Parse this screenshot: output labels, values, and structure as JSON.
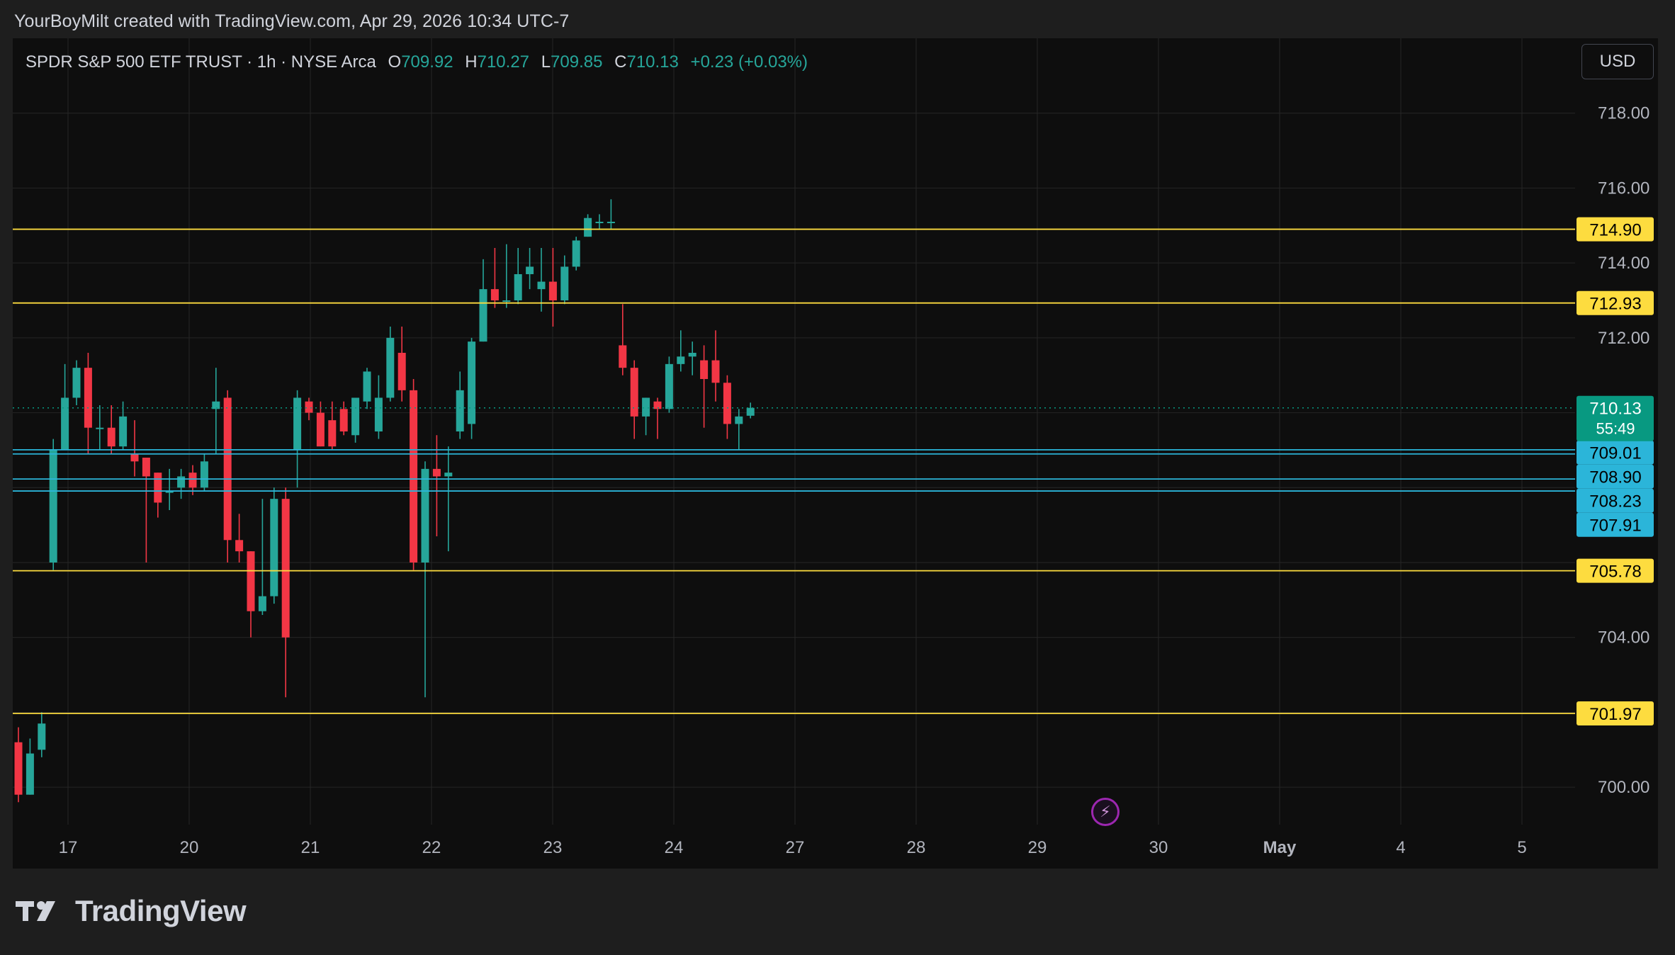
{
  "credit": "YourBoyMilt created with TradingView.com, Apr 29, 2026 10:34 UTC-7",
  "legend": {
    "symbol": "SPDR S&P 500 ETF TRUST · 1h · NYSE Arca",
    "o_label": "O",
    "o_value": "709.92",
    "h_label": "H",
    "h_value": "710.27",
    "l_label": "L",
    "l_value": "709.85",
    "c_label": "C",
    "c_value": "710.13",
    "change": "+0.23 (+0.03%)"
  },
  "currency": "USD",
  "brand": "TradingView",
  "icons": {
    "logo": "tradingview-logo-icon",
    "flash": "lightning-icon"
  },
  "colors": {
    "up": "#26a69a",
    "down": "#f23645",
    "support_line": "#fddc3f",
    "level_line": "#2bb5d9",
    "last_price": "#089981",
    "axis_text": "#b2b5be"
  },
  "chart_data": {
    "type": "candlestick",
    "title": "SPDR S&P 500 ETF TRUST · 1h · NYSE Arca",
    "ylim": [
      699,
      720
    ],
    "y_ticks": [
      "718.00",
      "716.00",
      "714.00",
      "712.00",
      "704.00",
      "700.00"
    ],
    "x_ticks": [
      "17",
      "20",
      "21",
      "22",
      "23",
      "24",
      "27",
      "28",
      "29",
      "30",
      "May",
      "4",
      "5"
    ],
    "horizontal_lines": [
      {
        "label": "714.90",
        "value": 714.9,
        "style": "yellow"
      },
      {
        "label": "712.93",
        "value": 712.93,
        "style": "yellow"
      },
      {
        "label": "705.78",
        "value": 705.78,
        "style": "yellow"
      },
      {
        "label": "701.97",
        "value": 701.97,
        "style": "yellow"
      },
      {
        "label": "709.01",
        "value": 709.01,
        "style": "blue"
      },
      {
        "label": "708.90",
        "value": 708.9,
        "style": "blue"
      },
      {
        "label": "708.23",
        "value": 708.23,
        "style": "blue"
      },
      {
        "label": "707.91",
        "value": 707.91,
        "style": "blue"
      }
    ],
    "last_price": {
      "label": "710.13",
      "value": 710.13,
      "countdown": "55:49"
    },
    "candles": [
      {
        "o": 701.2,
        "h": 701.6,
        "l": 699.6,
        "c": 699.8
      },
      {
        "o": 699.8,
        "h": 701.3,
        "l": 699.8,
        "c": 700.9
      },
      {
        "o": 701.0,
        "h": 702.0,
        "l": 700.8,
        "c": 701.7
      },
      {
        "o": 706.0,
        "h": 709.3,
        "l": 705.8,
        "c": 709.0
      },
      {
        "o": 709.0,
        "h": 711.3,
        "l": 709.0,
        "c": 710.4
      },
      {
        "o": 710.4,
        "h": 711.4,
        "l": 710.2,
        "c": 711.2
      },
      {
        "o": 711.2,
        "h": 711.6,
        "l": 708.9,
        "c": 709.6
      },
      {
        "o": 709.6,
        "h": 710.2,
        "l": 709.0,
        "c": 709.6
      },
      {
        "o": 709.6,
        "h": 710.2,
        "l": 708.9,
        "c": 709.1
      },
      {
        "o": 709.1,
        "h": 710.3,
        "l": 709.0,
        "c": 709.9
      },
      {
        "o": 708.9,
        "h": 709.8,
        "l": 708.3,
        "c": 708.7
      },
      {
        "o": 708.8,
        "h": 708.8,
        "l": 706.0,
        "c": 708.3
      },
      {
        "o": 708.4,
        "h": 708.4,
        "l": 707.2,
        "c": 707.6
      },
      {
        "o": 707.9,
        "h": 708.5,
        "l": 707.4,
        "c": 707.9
      },
      {
        "o": 708.0,
        "h": 708.5,
        "l": 707.7,
        "c": 708.3
      },
      {
        "o": 708.4,
        "h": 708.6,
        "l": 707.8,
        "c": 708.0
      },
      {
        "o": 708.0,
        "h": 708.9,
        "l": 707.9,
        "c": 708.7
      },
      {
        "o": 710.1,
        "h": 711.2,
        "l": 708.9,
        "c": 710.3
      },
      {
        "o": 710.4,
        "h": 710.6,
        "l": 706.0,
        "c": 706.6
      },
      {
        "o": 706.6,
        "h": 707.3,
        "l": 706.0,
        "c": 706.3
      },
      {
        "o": 706.3,
        "h": 706.3,
        "l": 704.0,
        "c": 704.7
      },
      {
        "o": 704.7,
        "h": 707.7,
        "l": 704.6,
        "c": 705.1
      },
      {
        "o": 705.1,
        "h": 708.0,
        "l": 704.9,
        "c": 707.7
      },
      {
        "o": 707.7,
        "h": 708.0,
        "l": 702.4,
        "c": 704.0
      },
      {
        "o": 709.0,
        "h": 710.6,
        "l": 708.0,
        "c": 710.4
      },
      {
        "o": 710.3,
        "h": 710.4,
        "l": 709.8,
        "c": 710.0
      },
      {
        "o": 710.0,
        "h": 710.3,
        "l": 709.1,
        "c": 709.1
      },
      {
        "o": 709.8,
        "h": 710.3,
        "l": 709.0,
        "c": 709.1
      },
      {
        "o": 710.1,
        "h": 710.3,
        "l": 709.4,
        "c": 709.5
      },
      {
        "o": 709.4,
        "h": 710.3,
        "l": 709.2,
        "c": 710.4
      },
      {
        "o": 710.3,
        "h": 711.2,
        "l": 710.1,
        "c": 711.1
      },
      {
        "o": 709.5,
        "h": 711.0,
        "l": 709.3,
        "c": 710.4
      },
      {
        "o": 710.4,
        "h": 712.3,
        "l": 710.3,
        "c": 712.0
      },
      {
        "o": 711.6,
        "h": 712.3,
        "l": 710.3,
        "c": 710.6
      },
      {
        "o": 710.6,
        "h": 710.9,
        "l": 705.8,
        "c": 706.0
      },
      {
        "o": 706.0,
        "h": 708.7,
        "l": 702.4,
        "c": 708.5
      },
      {
        "o": 708.5,
        "h": 709.4,
        "l": 706.7,
        "c": 708.3
      },
      {
        "o": 708.3,
        "h": 709.1,
        "l": 706.3,
        "c": 708.4
      },
      {
        "o": 709.5,
        "h": 711.1,
        "l": 709.3,
        "c": 710.6
      },
      {
        "o": 709.7,
        "h": 712.0,
        "l": 709.3,
        "c": 711.9
      },
      {
        "o": 711.9,
        "h": 714.1,
        "l": 711.9,
        "c": 713.3
      },
      {
        "o": 713.3,
        "h": 714.4,
        "l": 712.8,
        "c": 713.0
      },
      {
        "o": 713.0,
        "h": 714.5,
        "l": 712.8,
        "c": 713.0
      },
      {
        "o": 713.0,
        "h": 714.4,
        "l": 712.9,
        "c": 713.7
      },
      {
        "o": 713.7,
        "h": 714.4,
        "l": 713.3,
        "c": 713.9
      },
      {
        "o": 713.3,
        "h": 714.4,
        "l": 712.7,
        "c": 713.5
      },
      {
        "o": 713.5,
        "h": 714.4,
        "l": 712.3,
        "c": 713.0
      },
      {
        "o": 713.0,
        "h": 714.2,
        "l": 712.9,
        "c": 713.9
      },
      {
        "o": 713.9,
        "h": 714.7,
        "l": 713.8,
        "c": 714.6
      },
      {
        "o": 714.7,
        "h": 715.3,
        "l": 714.7,
        "c": 715.2
      },
      {
        "o": 715.1,
        "h": 715.3,
        "l": 714.9,
        "c": 715.1
      },
      {
        "o": 715.1,
        "h": 715.7,
        "l": 714.9,
        "c": 715.1
      },
      {
        "o": 711.8,
        "h": 712.9,
        "l": 711.0,
        "c": 711.2
      },
      {
        "o": 711.2,
        "h": 711.4,
        "l": 709.3,
        "c": 709.9
      },
      {
        "o": 709.9,
        "h": 710.4,
        "l": 709.4,
        "c": 710.4
      },
      {
        "o": 710.3,
        "h": 710.4,
        "l": 709.3,
        "c": 710.1
      },
      {
        "o": 710.1,
        "h": 711.5,
        "l": 710.0,
        "c": 711.3
      },
      {
        "o": 711.3,
        "h": 712.2,
        "l": 711.1,
        "c": 711.5
      },
      {
        "o": 711.5,
        "h": 711.9,
        "l": 711.0,
        "c": 711.6
      },
      {
        "o": 711.4,
        "h": 711.8,
        "l": 709.6,
        "c": 710.9
      },
      {
        "o": 711.4,
        "h": 712.2,
        "l": 710.3,
        "c": 710.8
      },
      {
        "o": 710.8,
        "h": 711.0,
        "l": 709.3,
        "c": 709.7
      },
      {
        "o": 709.7,
        "h": 710.1,
        "l": 709.0,
        "c": 709.9
      },
      {
        "o": 709.92,
        "h": 710.27,
        "l": 709.85,
        "c": 710.13
      }
    ]
  }
}
